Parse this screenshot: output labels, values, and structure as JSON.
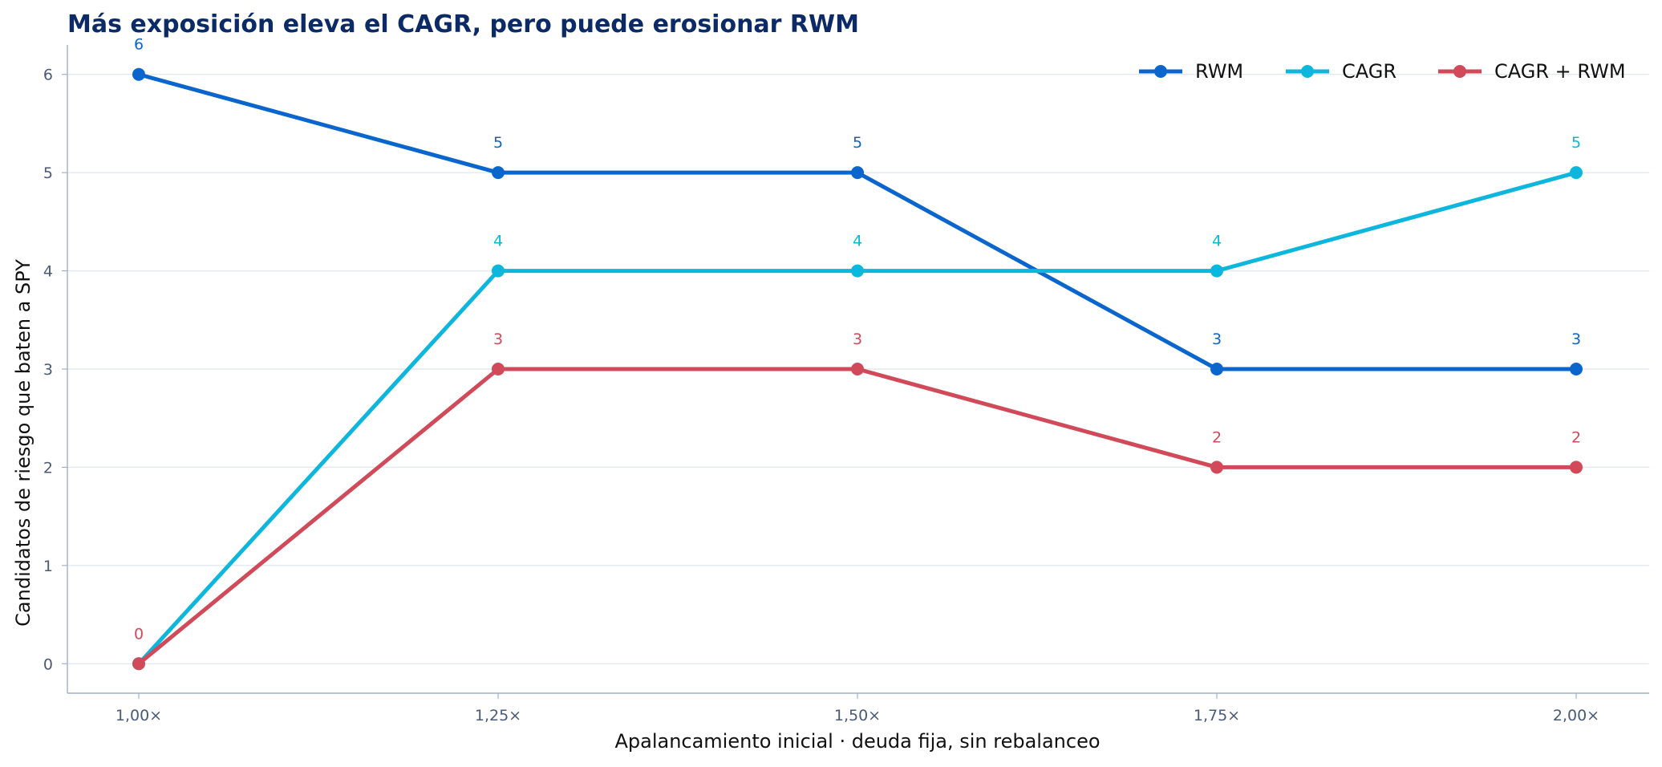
{
  "chart_data": {
    "type": "line",
    "title": "Más exposición eleva el CAGR, pero puede erosionar RWM",
    "xlabel": "Apalancamiento inicial · deuda fija, sin rebalanceo",
    "ylabel": "Candidatos de riesgo que baten a SPY",
    "categories": [
      "1,00×",
      "1,25×",
      "1,50×",
      "1,75×",
      "2,00×"
    ],
    "yticks": [
      "0",
      "1",
      "2",
      "3",
      "4",
      "5",
      "6"
    ],
    "ylim": [
      -0.3,
      6.3
    ],
    "grid": "horizontal",
    "legend_position": "top-right",
    "series": [
      {
        "name": "RWM",
        "values": [
          6,
          5,
          5,
          3,
          3
        ],
        "labels": [
          "6",
          "5",
          "5",
          "3",
          "3"
        ],
        "color": "#0a66cc"
      },
      {
        "name": "CAGR",
        "values": [
          0,
          4,
          4,
          4,
          5
        ],
        "labels": [
          "",
          "4",
          "4",
          "4",
          "5"
        ],
        "color": "#0cb6dc"
      },
      {
        "name": "CAGR + RWM",
        "values": [
          0,
          3,
          3,
          2,
          2
        ],
        "labels": [
          "0",
          "3",
          "3",
          "2",
          "2"
        ],
        "color": "#d14a5a"
      }
    ]
  }
}
